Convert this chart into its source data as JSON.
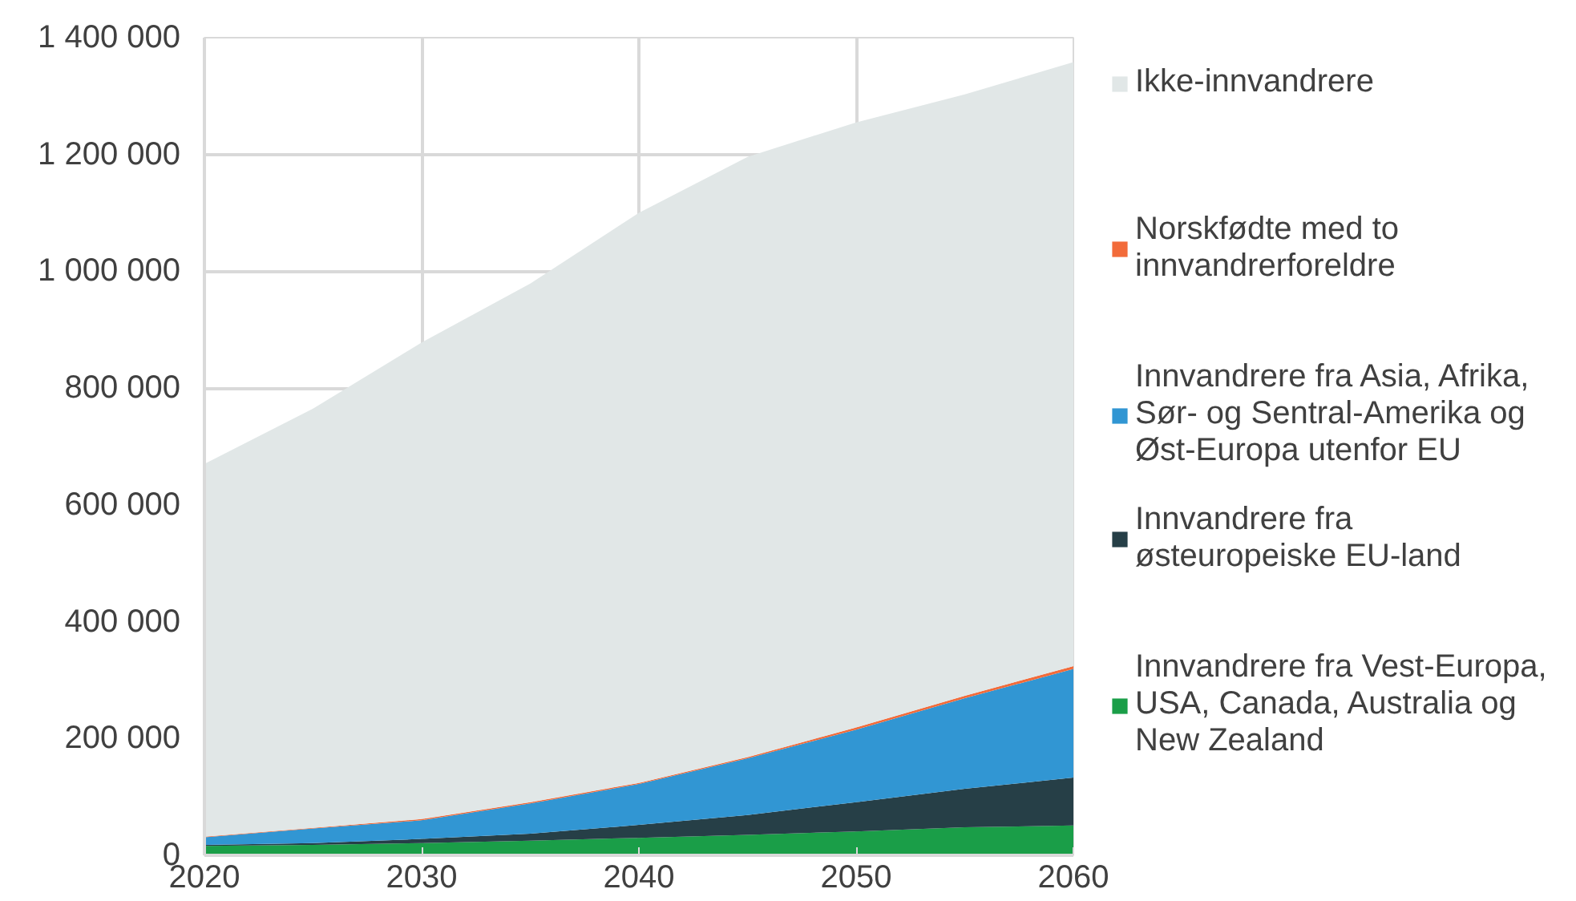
{
  "chart_data": {
    "type": "area",
    "stacked": true,
    "x": [
      2020,
      2025,
      2030,
      2035,
      2040,
      2045,
      2050,
      2055,
      2060
    ],
    "xlim": [
      2020,
      2060
    ],
    "xticks": [
      2020,
      2030,
      2040,
      2050,
      2060
    ],
    "ylim": [
      0,
      1400000
    ],
    "yticks": [
      0,
      {
        "value": 200000,
        "label": "200 000"
      },
      {
        "value": 400000,
        "label": "400 000"
      },
      {
        "value": 600000,
        "label": "600 000"
      },
      {
        "value": 800000,
        "label": "800 000"
      },
      {
        "value": 1000000,
        "label": "1 000 000"
      },
      {
        "value": 1200000,
        "label": "1 200 000"
      },
      {
        "value": 1400000,
        "label": "1 400 000"
      }
    ],
    "grid": true,
    "legend": "right",
    "series": [
      {
        "name": "Innvandrere fra Vest-Europa, USA, Canada, Australia og New Zealand",
        "color": "#1a9e48",
        "values": [
          16000,
          18000,
          21000,
          25000,
          30000,
          35000,
          41000,
          48000,
          51000
        ]
      },
      {
        "name": "Innvandrere fra østeuropeiske EU-land",
        "color": "#263f47",
        "values": [
          2000,
          3000,
          7000,
          12000,
          22000,
          34000,
          50000,
          66000,
          82000
        ]
      },
      {
        "name": "Innvandrere fra Asia, Afrika, Sør- og Sentral-Amerika og Øst-Europa utenfor EU",
        "color": "#3196d3",
        "values": [
          13000,
          25000,
          32000,
          52000,
          70000,
          97000,
          124000,
          155000,
          186000
        ]
      },
      {
        "name": "Norskfødte med to innvandrerforeldre",
        "color": "#f26b3a",
        "values": [
          1000,
          1000,
          2000,
          2000,
          2000,
          2000,
          4000,
          4000,
          5000
        ]
      },
      {
        "name": "Ikke-innvandrere",
        "color": "#e1e7e7",
        "values": [
          638000,
          718000,
          816000,
          888000,
          976000,
          1028000,
          1036000,
          1030000,
          1034000
        ]
      }
    ]
  }
}
